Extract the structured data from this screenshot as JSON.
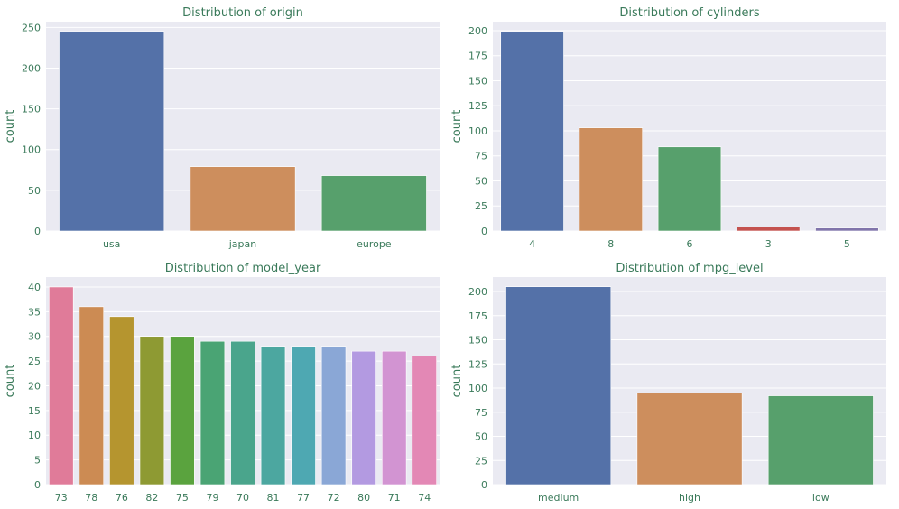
{
  "figure": {
    "background": "#ffffff",
    "axes_facecolor": "#eaeaf2",
    "text_color": "#3a7a5a"
  },
  "chart_data": [
    {
      "type": "bar",
      "title": "Distribution of origin",
      "xlabel": "",
      "ylabel": "count",
      "categories": [
        "usa",
        "japan",
        "europe"
      ],
      "values": [
        245,
        79,
        68
      ],
      "ylim": [
        0,
        257
      ],
      "yticks": [
        0,
        50,
        100,
        150,
        200,
        250
      ],
      "colors": [
        "#5471a8",
        "#cd8e5d",
        "#57a06c"
      ],
      "grid": true
    },
    {
      "type": "bar",
      "title": "Distribution of cylinders",
      "xlabel": "",
      "ylabel": "count",
      "categories": [
        "4",
        "8",
        "6",
        "3",
        "5"
      ],
      "values": [
        199,
        103,
        84,
        4,
        3
      ],
      "ylim": [
        0,
        209
      ],
      "yticks": [
        0,
        25,
        50,
        75,
        100,
        125,
        150,
        175,
        200
      ],
      "colors": [
        "#5471a8",
        "#cd8e5d",
        "#57a06c",
        "#c4524f",
        "#8175ab"
      ],
      "grid": true
    },
    {
      "type": "bar",
      "title": "Distribution of model_year",
      "xlabel": "",
      "ylabel": "count",
      "categories": [
        "73",
        "78",
        "76",
        "82",
        "75",
        "79",
        "70",
        "81",
        "77",
        "72",
        "80",
        "71",
        "74"
      ],
      "values": [
        40,
        36,
        34,
        30,
        30,
        29,
        29,
        28,
        28,
        28,
        27,
        27,
        26
      ],
      "ylim": [
        0,
        42
      ],
      "yticks": [
        0,
        5,
        10,
        15,
        20,
        25,
        30,
        35,
        40
      ],
      "colors": [
        "#e07b99",
        "#cc8b53",
        "#b5952f",
        "#8e9a33",
        "#5aa33e",
        "#4aa474",
        "#4aa58c",
        "#4ca7a0",
        "#4ea8b2",
        "#8aa7d6",
        "#b39ae1",
        "#d294d2",
        "#e388b5"
      ],
      "grid": true
    },
    {
      "type": "bar",
      "title": "Distribution of mpg_level",
      "xlabel": "",
      "ylabel": "count",
      "categories": [
        "medium",
        "high",
        "low"
      ],
      "values": [
        205,
        95,
        92
      ],
      "ylim": [
        0,
        215
      ],
      "yticks": [
        0,
        25,
        50,
        75,
        100,
        125,
        150,
        175,
        200
      ],
      "colors": [
        "#5471a8",
        "#cd8e5d",
        "#57a06c"
      ],
      "grid": true
    }
  ]
}
